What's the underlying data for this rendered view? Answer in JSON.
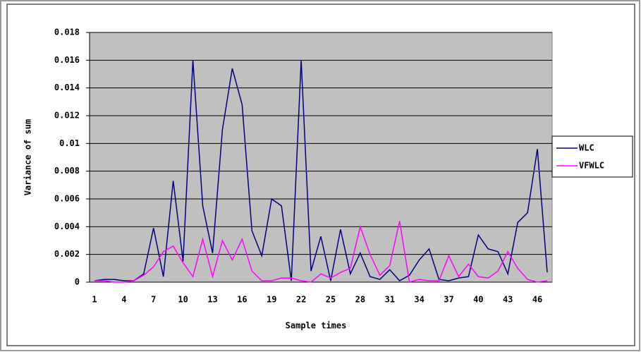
{
  "chart_data": {
    "type": "line",
    "x_label": "Sample times",
    "y_label": "Variance of sum",
    "categories": [
      1,
      null,
      null,
      4,
      null,
      null,
      7,
      null,
      null,
      10,
      null,
      null,
      13,
      null,
      null,
      16,
      null,
      null,
      19,
      null,
      null,
      22,
      null,
      null,
      25,
      null,
      null,
      28,
      null,
      null,
      31,
      null,
      null,
      34,
      null,
      null,
      37,
      null,
      null,
      40,
      null,
      null,
      43,
      null,
      null,
      46,
      null
    ],
    "series": [
      {
        "name": "WLC",
        "color": "#000080",
        "values": [
          0.0001,
          0.0002,
          0.0002,
          0.0001,
          0.0001,
          0.0006,
          0.0039,
          0.0004,
          0.0073,
          0.0015,
          0.016,
          0.0055,
          0.0021,
          0.011,
          0.0154,
          0.0128,
          0.0037,
          0.0019,
          0.006,
          0.0055,
          0.0001,
          0.016,
          0.0008,
          0.0033,
          0.0001,
          0.0038,
          0.0006,
          0.0021,
          0.0004,
          0.0002,
          0.0009,
          0.0001,
          0.0005,
          0.0016,
          0.0024,
          0.0002,
          0.0001,
          0.0003,
          0.0004,
          0.0034,
          0.0024,
          0.0022,
          0.0006,
          0.0043,
          0.005,
          0.0096,
          0.0007
        ]
      },
      {
        "name": "VFWLC",
        "color": "#ff00ff",
        "values": [
          0.0001,
          0.0001,
          0,
          0,
          0.0001,
          0.0005,
          0.0011,
          0.0022,
          0.0026,
          0.0014,
          0.0004,
          0.0031,
          0.0004,
          0.003,
          0.0016,
          0.0031,
          0.0008,
          0.0001,
          0.0001,
          0.0003,
          0.0003,
          0.0001,
          0,
          0.0006,
          0.0003,
          0.0007,
          0.001,
          0.004,
          0.002,
          0.0005,
          0.0012,
          0.0044,
          0,
          0.0002,
          0.0001,
          0.0001,
          0.0019,
          0.0004,
          0.0013,
          0.0004,
          0.0003,
          0.0008,
          0.0022,
          0.001,
          0.0002,
          0,
          0.0001
        ]
      }
    ],
    "ylim": [
      0,
      0.018
    ],
    "yticks": [
      0,
      0.002,
      0.004,
      0.006,
      0.008,
      0.01,
      0.012,
      0.014,
      0.016,
      0.018
    ],
    "grid": true,
    "legend": "right",
    "plot_background": "#c0c0c0"
  }
}
